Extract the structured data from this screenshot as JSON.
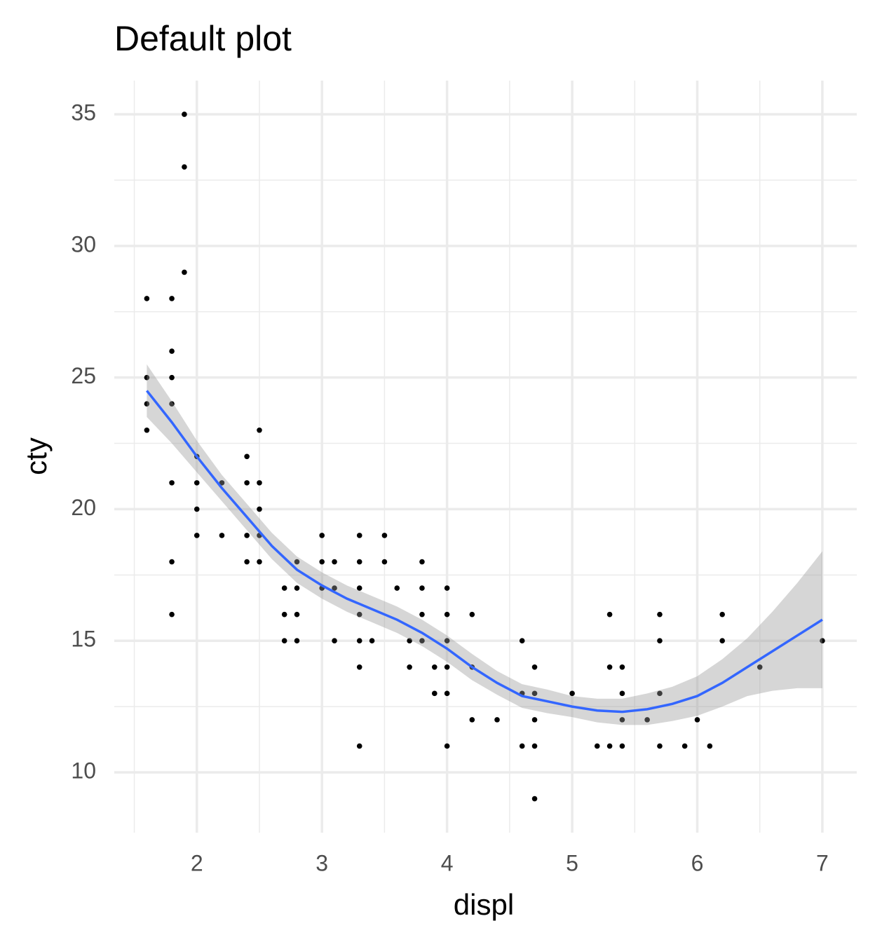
{
  "chart_data": {
    "type": "scatter",
    "title": "Default plot",
    "x_label": "displ",
    "y_label": "cty",
    "point_color": "#000000",
    "x": [
      1.6,
      1.6,
      1.6,
      1.6,
      1.8,
      1.8,
      1.8,
      1.8,
      1.8,
      1.8,
      1.8,
      1.9,
      1.9,
      1.9,
      2.0,
      2.0,
      2.0,
      2.0,
      2.2,
      2.2,
      2.4,
      2.4,
      2.4,
      2.4,
      2.5,
      2.5,
      2.5,
      2.5,
      2.5,
      2.7,
      2.7,
      2.7,
      2.8,
      2.8,
      2.8,
      2.8,
      3.0,
      3.0,
      3.0,
      3.1,
      3.1,
      3.1,
      3.3,
      3.3,
      3.3,
      3.3,
      3.3,
      3.3,
      3.3,
      3.4,
      3.5,
      3.5,
      3.6,
      3.7,
      3.7,
      3.8,
      3.8,
      3.8,
      3.8,
      3.9,
      3.9,
      4.0,
      4.0,
      4.0,
      4.0,
      4.0,
      4.0,
      4.2,
      4.2,
      4.2,
      4.4,
      4.6,
      4.6,
      4.6,
      4.7,
      4.7,
      4.7,
      4.7,
      4.7,
      5.0,
      5.2,
      5.3,
      5.3,
      5.3,
      5.4,
      5.4,
      5.4,
      5.4,
      5.6,
      5.7,
      5.7,
      5.7,
      5.7,
      5.9,
      6.0,
      6.1,
      6.2,
      6.2,
      6.5,
      7.0
    ],
    "y": [
      28,
      25,
      24,
      23,
      28,
      26,
      25,
      24,
      21,
      18,
      16,
      35,
      33,
      29,
      22,
      21,
      20,
      19,
      21,
      19,
      22,
      21,
      19,
      18,
      23,
      21,
      20,
      19,
      18,
      17,
      16,
      15,
      18,
      17,
      16,
      15,
      19,
      18,
      17,
      18,
      17,
      15,
      19,
      18,
      17,
      16,
      15,
      14,
      11,
      15,
      19,
      18,
      17,
      15,
      14,
      18,
      17,
      16,
      15,
      14,
      13,
      17,
      16,
      15,
      14,
      13,
      11,
      16,
      14,
      12,
      12,
      15,
      13,
      11,
      14,
      13,
      12,
      11,
      9,
      13,
      11,
      16,
      14,
      11,
      14,
      13,
      12,
      11,
      12,
      16,
      15,
      13,
      11,
      11,
      12,
      11,
      16,
      15,
      14,
      15
    ],
    "smooth": {
      "color": "#3366ff",
      "band_color": "#999999",
      "x": [
        1.6,
        1.8,
        2.0,
        2.2,
        2.4,
        2.6,
        2.8,
        3.0,
        3.2,
        3.4,
        3.6,
        3.8,
        4.0,
        4.2,
        4.4,
        4.6,
        4.8,
        5.0,
        5.2,
        5.4,
        5.6,
        5.8,
        6.0,
        6.2,
        6.4,
        6.6,
        6.8,
        7.0
      ],
      "y": [
        24.5,
        23.3,
        22.0,
        20.8,
        19.7,
        18.6,
        17.7,
        17.1,
        16.6,
        16.2,
        15.8,
        15.3,
        14.7,
        14.0,
        13.4,
        12.9,
        12.7,
        12.5,
        12.35,
        12.3,
        12.4,
        12.6,
        12.9,
        13.4,
        14.0,
        14.6,
        15.2,
        15.8
      ],
      "lower": [
        23.5,
        22.5,
        21.4,
        20.3,
        19.2,
        18.1,
        17.2,
        16.6,
        16.1,
        15.7,
        15.3,
        14.8,
        14.2,
        13.5,
        12.95,
        12.45,
        12.25,
        12.1,
        11.9,
        11.8,
        11.8,
        11.95,
        12.15,
        12.5,
        12.9,
        13.1,
        13.2,
        13.2
      ],
      "upper": [
        25.5,
        24.1,
        22.6,
        21.3,
        20.2,
        19.1,
        18.2,
        17.6,
        17.1,
        16.7,
        16.3,
        15.8,
        15.2,
        14.5,
        13.85,
        13.35,
        13.15,
        12.9,
        12.8,
        12.8,
        13.0,
        13.25,
        13.65,
        14.3,
        15.1,
        16.1,
        17.2,
        18.4
      ]
    },
    "xlim": [
      1.34,
      7.275
    ],
    "ylim": [
      7.71,
      36.28
    ],
    "xticks": [
      2,
      3,
      4,
      5,
      6,
      7
    ],
    "yticks": [
      10,
      15,
      20,
      25,
      30,
      35
    ],
    "x_minor_ticks": [
      1.5,
      2.5,
      3.5,
      4.5,
      5.5,
      6.5
    ],
    "y_minor_ticks": [
      12.5,
      17.5,
      22.5,
      27.5,
      32.5
    ],
    "grid": true
  }
}
